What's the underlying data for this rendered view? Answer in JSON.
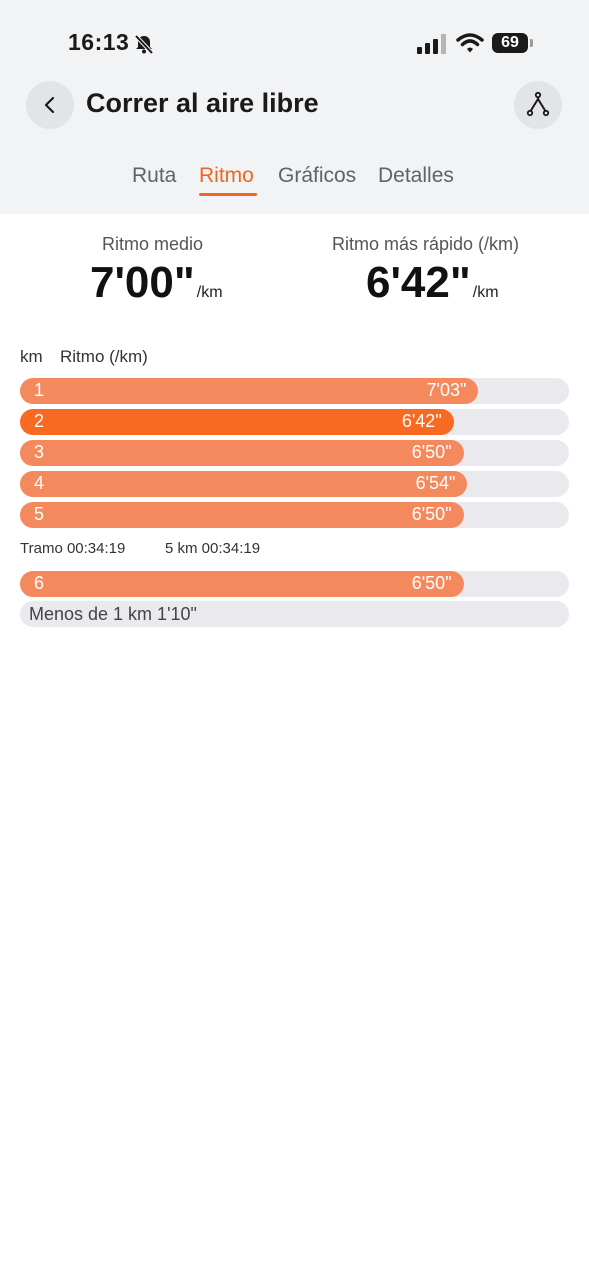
{
  "status_bar": {
    "time": "16:13",
    "battery": "69"
  },
  "header": {
    "title": "Correr al aire libre"
  },
  "tabs": [
    {
      "label": "Ruta"
    },
    {
      "label": "Ritmo"
    },
    {
      "label": "Gráficos"
    },
    {
      "label": "Detalles"
    }
  ],
  "active_tab": "Ritmo",
  "summary": {
    "avg_label": "Ritmo medio",
    "avg_value": "7'00\"",
    "fast_label": "Ritmo más rápido (/km)",
    "fast_value": "6'42\"",
    "unit": "/km"
  },
  "table": {
    "col_km": "km",
    "col_pace": "Ritmo (/km)",
    "rows": [
      {
        "km": "1",
        "pace": "7'03\"",
        "fill": 0.835
      },
      {
        "km": "2",
        "pace": "6'42\"",
        "fill": 0.79,
        "fastest": true
      },
      {
        "km": "3",
        "pace": "6'50\"",
        "fill": 0.808
      },
      {
        "km": "4",
        "pace": "6'54\"",
        "fill": 0.815
      },
      {
        "km": "5",
        "pace": "6'50\"",
        "fill": 0.808
      }
    ],
    "split_label": "Tramo 00:34:19",
    "split_5km": "5 km 00:34:19",
    "extra_rows": [
      {
        "km": "6",
        "pace": "6'50\"",
        "fill": 0.808
      }
    ],
    "less_than_1km": "Menos de 1 km 1'10\""
  },
  "colors": {
    "accent": "#f4641f",
    "bar": "#f5895e",
    "bar_fast": "#f86a22",
    "track": "#e9e9ee"
  }
}
